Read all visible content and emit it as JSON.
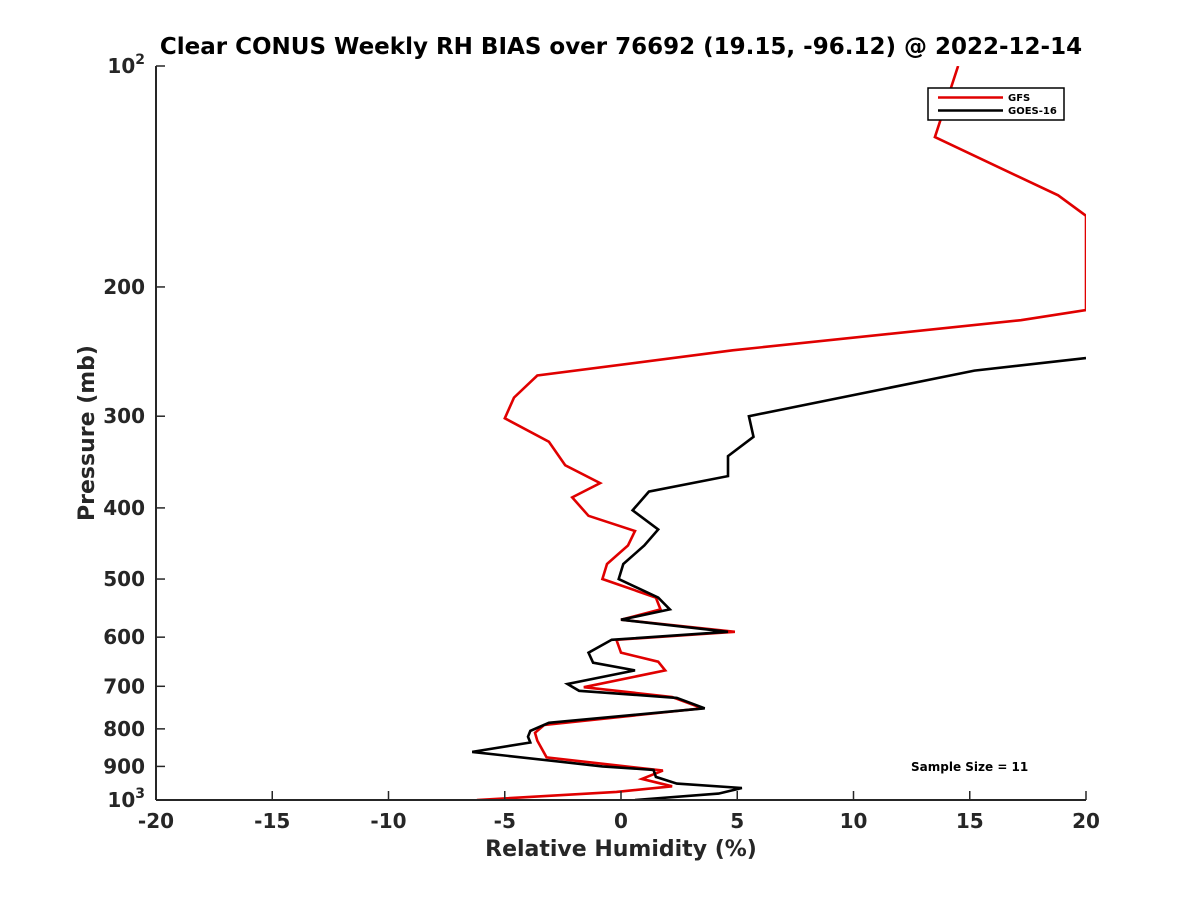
{
  "chart_data": {
    "type": "line",
    "title": "Clear CONUS Weekly RH BIAS over 76692 (19.15, -96.12) @ 2022-12-14",
    "xlabel": "Relative Humidity (%)",
    "ylabel": "Pressure (mb)",
    "xlim": [
      -20,
      20
    ],
    "ylim": [
      100,
      1000
    ],
    "yscale": "log",
    "y_reversed": true,
    "grid": false,
    "x_ticks": [
      -20,
      -15,
      -10,
      -5,
      0,
      5,
      10,
      15,
      20
    ],
    "x_tick_labels": [
      "-20",
      "-15",
      "-10",
      "-5",
      "0",
      "5",
      "10",
      "15",
      "20"
    ],
    "y_ticks": [
      {
        "value": 100,
        "label": "10",
        "sup": "2"
      },
      {
        "value": 200,
        "label": "200",
        "sup": ""
      },
      {
        "value": 300,
        "label": "300",
        "sup": ""
      },
      {
        "value": 400,
        "label": "400",
        "sup": ""
      },
      {
        "value": 500,
        "label": "500",
        "sup": ""
      },
      {
        "value": 600,
        "label": "600",
        "sup": ""
      },
      {
        "value": 700,
        "label": "700",
        "sup": ""
      },
      {
        "value": 800,
        "label": "800",
        "sup": ""
      },
      {
        "value": 900,
        "label": "900",
        "sup": ""
      },
      {
        "value": 1000,
        "label": "10",
        "sup": "3"
      }
    ],
    "legend": {
      "position": "top-right",
      "entries": [
        {
          "name": "GFS",
          "color": "#e00000"
        },
        {
          "name": "GOES-16",
          "color": "#000000"
        }
      ]
    },
    "annotation": "Sample Size = 11",
    "series": [
      {
        "name": "GFS",
        "color": "#e00000",
        "points": [
          {
            "x": 14.5,
            "p": 100
          },
          {
            "x": 13.5,
            "p": 125
          },
          {
            "x": 18.8,
            "p": 150
          },
          {
            "x": 20.0,
            "p": 160
          },
          {
            "x": 20.0,
            "p": 215
          },
          {
            "x": 17.2,
            "p": 222
          },
          {
            "x": 4.8,
            "p": 244
          },
          {
            "x": -3.6,
            "p": 264
          },
          {
            "x": -4.6,
            "p": 283
          },
          {
            "x": -5.0,
            "p": 302
          },
          {
            "x": -3.1,
            "p": 325
          },
          {
            "x": -2.4,
            "p": 350
          },
          {
            "x": -0.9,
            "p": 370
          },
          {
            "x": -2.1,
            "p": 387
          },
          {
            "x": -1.4,
            "p": 410
          },
          {
            "x": 0.6,
            "p": 430
          },
          {
            "x": 0.3,
            "p": 450
          },
          {
            "x": -0.6,
            "p": 477
          },
          {
            "x": -0.8,
            "p": 500
          },
          {
            "x": 1.5,
            "p": 530
          },
          {
            "x": 1.7,
            "p": 550
          },
          {
            "x": 0.0,
            "p": 568
          },
          {
            "x": 4.9,
            "p": 590
          },
          {
            "x": -0.2,
            "p": 605
          },
          {
            "x": 0.0,
            "p": 630
          },
          {
            "x": 1.6,
            "p": 648
          },
          {
            "x": 1.9,
            "p": 666
          },
          {
            "x": -1.6,
            "p": 702
          },
          {
            "x": 2.2,
            "p": 724
          },
          {
            "x": 3.5,
            "p": 750
          },
          {
            "x": -3.3,
            "p": 790
          },
          {
            "x": -3.7,
            "p": 810
          },
          {
            "x": -3.6,
            "p": 830
          },
          {
            "x": -3.2,
            "p": 875
          },
          {
            "x": 1.8,
            "p": 912
          },
          {
            "x": 0.9,
            "p": 936
          },
          {
            "x": 2.2,
            "p": 958
          },
          {
            "x": -0.2,
            "p": 975
          },
          {
            "x": -6.2,
            "p": 1000
          }
        ]
      },
      {
        "name": "GOES-16",
        "color": "#000000",
        "points": [
          {
            "x": 20.0,
            "p": 250
          },
          {
            "x": 15.2,
            "p": 260
          },
          {
            "x": 5.5,
            "p": 300
          },
          {
            "x": 5.7,
            "p": 320
          },
          {
            "x": 4.6,
            "p": 340
          },
          {
            "x": 4.6,
            "p": 362
          },
          {
            "x": 1.2,
            "p": 380
          },
          {
            "x": 0.5,
            "p": 403
          },
          {
            "x": 1.6,
            "p": 428
          },
          {
            "x": 1.0,
            "p": 450
          },
          {
            "x": 0.1,
            "p": 477
          },
          {
            "x": -0.1,
            "p": 500
          },
          {
            "x": 1.6,
            "p": 530
          },
          {
            "x": 2.1,
            "p": 550
          },
          {
            "x": 0.0,
            "p": 568
          },
          {
            "x": 4.6,
            "p": 590
          },
          {
            "x": -0.4,
            "p": 605
          },
          {
            "x": -1.4,
            "p": 630
          },
          {
            "x": -1.2,
            "p": 650
          },
          {
            "x": 0.6,
            "p": 666
          },
          {
            "x": -2.3,
            "p": 695
          },
          {
            "x": -1.8,
            "p": 710
          },
          {
            "x": 2.4,
            "p": 726
          },
          {
            "x": 3.6,
            "p": 750
          },
          {
            "x": -3.1,
            "p": 785
          },
          {
            "x": -3.9,
            "p": 805
          },
          {
            "x": -4.0,
            "p": 820
          },
          {
            "x": -3.9,
            "p": 835
          },
          {
            "x": -6.4,
            "p": 860
          },
          {
            "x": -0.8,
            "p": 900
          },
          {
            "x": 1.4,
            "p": 910
          },
          {
            "x": 1.5,
            "p": 930
          },
          {
            "x": 2.4,
            "p": 950
          },
          {
            "x": 5.2,
            "p": 963
          },
          {
            "x": 4.2,
            "p": 980
          },
          {
            "x": 0.6,
            "p": 1000
          }
        ]
      }
    ]
  }
}
